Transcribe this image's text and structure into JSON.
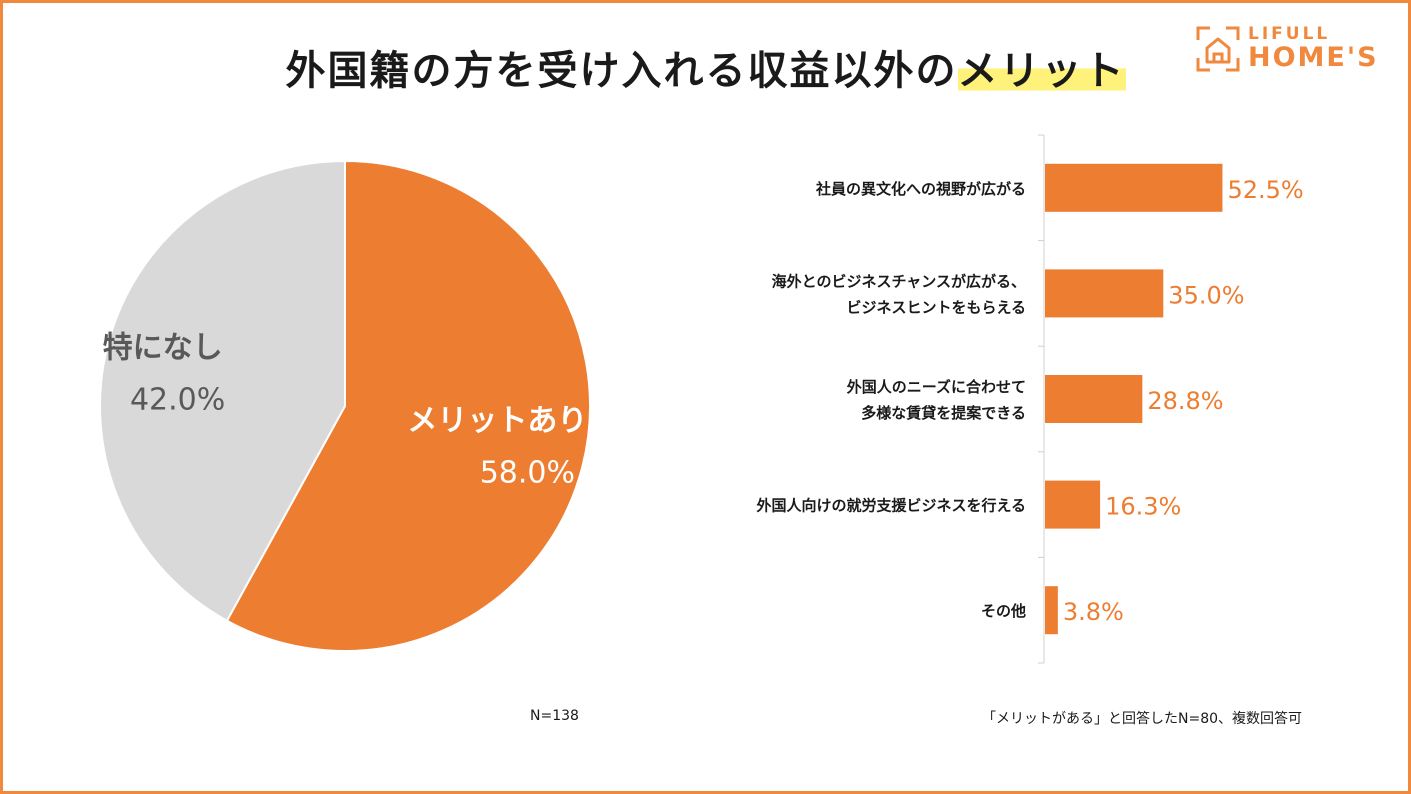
{
  "title": {
    "main": "外国籍の方を受け入れる収益以外の",
    "highlight": "メリット"
  },
  "logo": {
    "line1": "LIFULL",
    "line2": "HOME'S",
    "color": "#f0883e"
  },
  "chart_data": [
    {
      "type": "pie",
      "slices": [
        {
          "label": "メリットあり",
          "value": 58.0,
          "value_label": "58.0%",
          "color": "#ed7d31"
        },
        {
          "label": "特になし",
          "value": 42.0,
          "value_label": "42.0%",
          "color": "#d9d9d9"
        }
      ],
      "note": "N=138"
    },
    {
      "type": "bar",
      "orientation": "horizontal",
      "categories": [
        [
          "社員の異文化への視野が広がる"
        ],
        [
          "海外とのビジネスチャンスが広がる、",
          "ビジネスヒントをもらえる"
        ],
        [
          "外国人のニーズに合わせて",
          "多様な賃貸を提案できる"
        ],
        [
          "外国人向けの就労支援ビジネスを行える"
        ],
        [
          "その他"
        ]
      ],
      "values": [
        52.5,
        35.0,
        28.8,
        16.3,
        3.8
      ],
      "value_labels": [
        "52.5%",
        "35.0%",
        "28.8%",
        "16.3%",
        "3.8%"
      ],
      "color": "#ed7d31",
      "xlim": [
        0,
        100
      ],
      "note": "「メリットがある」と回答したN=80、複数回答可"
    }
  ]
}
